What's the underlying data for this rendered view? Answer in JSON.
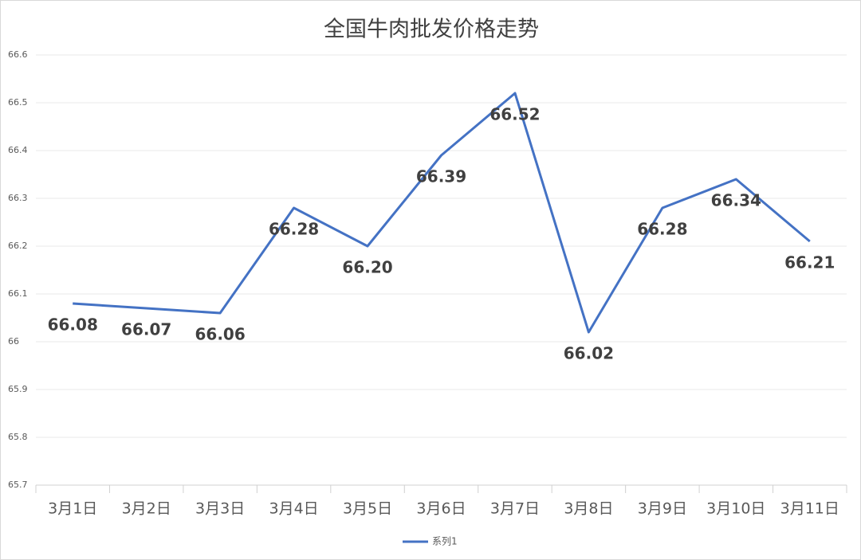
{
  "chart_data": {
    "type": "line",
    "title": "全国牛肉批发价格走势",
    "categories": [
      "3月1日",
      "3月2日",
      "3月3日",
      "3月4日",
      "3月5日",
      "3月6日",
      "3月7日",
      "3月8日",
      "3月9日",
      "3月10日",
      "3月11日"
    ],
    "series": [
      {
        "name": "系列1",
        "color": "#4472c4",
        "values": [
          66.08,
          66.07,
          66.06,
          66.28,
          66.2,
          66.39,
          66.52,
          66.02,
          66.28,
          66.34,
          66.21
        ],
        "value_labels": [
          "66.08",
          "66.07",
          "66.06",
          "66.28",
          "66.20",
          "66.39",
          "66.52",
          "66.02",
          "66.28",
          "66.34",
          "66.21"
        ]
      }
    ],
    "ylim": [
      65.7,
      66.6
    ],
    "yticks": [
      65.7,
      65.8,
      65.9,
      66,
      66.1,
      66.2,
      66.3,
      66.4,
      66.5,
      66.6
    ],
    "grid": true,
    "legend": "bottom"
  }
}
